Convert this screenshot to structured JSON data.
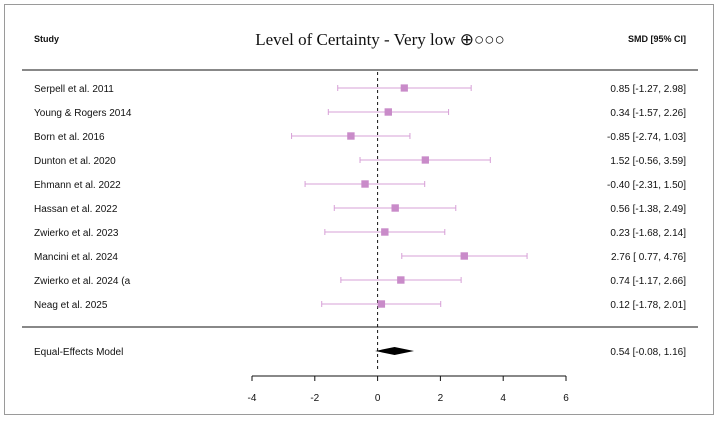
{
  "header": {
    "study_col": "Study",
    "title": "Level of Certainty - Very low ⊕○○○",
    "effect_col": "SMD [95% CI]"
  },
  "colors": {
    "study_marker": "#c98bc9",
    "ci_line": "#d7a0d7",
    "summary": "#000000",
    "axis": "#111111"
  },
  "chart_data": {
    "type": "forest",
    "title": "Level of Certainty - Very low ⊕○○○",
    "xlabel": "",
    "xlim": [
      -4,
      6
    ],
    "xticks": [
      "-4",
      "-2",
      "0",
      "2",
      "4",
      "6"
    ],
    "reference_line": 0,
    "studies": [
      {
        "label": "Serpell et al. 2011",
        "est": 0.85,
        "lo": -1.27,
        "hi": 2.98,
        "text": "0.85 [-1.27, 2.98]"
      },
      {
        "label": "Young & Rogers 2014",
        "est": 0.34,
        "lo": -1.57,
        "hi": 2.26,
        "text": "0.34 [-1.57, 2.26]"
      },
      {
        "label": "Born et al. 2016",
        "est": -0.85,
        "lo": -2.74,
        "hi": 1.03,
        "text": "-0.85 [-2.74, 1.03]"
      },
      {
        "label": "Dunton et al. 2020",
        "est": 1.52,
        "lo": -0.56,
        "hi": 3.59,
        "text": "1.52 [-0.56, 3.59]"
      },
      {
        "label": "Ehmann et al. 2022",
        "est": -0.4,
        "lo": -2.31,
        "hi": 1.5,
        "text": "-0.40 [-2.31, 1.50]"
      },
      {
        "label": "Hassan et al. 2022",
        "est": 0.56,
        "lo": -1.38,
        "hi": 2.49,
        "text": "0.56 [-1.38, 2.49]"
      },
      {
        "label": "Zwierko et al. 2023",
        "est": 0.23,
        "lo": -1.68,
        "hi": 2.14,
        "text": "0.23 [-1.68, 2.14]"
      },
      {
        "label": "Mancini et al. 2024",
        "est": 2.76,
        "lo": 0.77,
        "hi": 4.76,
        "text": "2.76 [ 0.77, 4.76]"
      },
      {
        "label": "Zwierko et al. 2024 (a",
        "est": 0.74,
        "lo": -1.17,
        "hi": 2.66,
        "text": "0.74 [-1.17, 2.66]"
      },
      {
        "label": "Neag et al. 2025",
        "est": 0.12,
        "lo": -1.78,
        "hi": 2.01,
        "text": "0.12 [-1.78, 2.01]"
      }
    ],
    "summary": {
      "label": "Equal-Effects Model",
      "est": 0.54,
      "lo": -0.08,
      "hi": 1.16,
      "text": "0.54 [-0.08, 1.16]"
    }
  }
}
